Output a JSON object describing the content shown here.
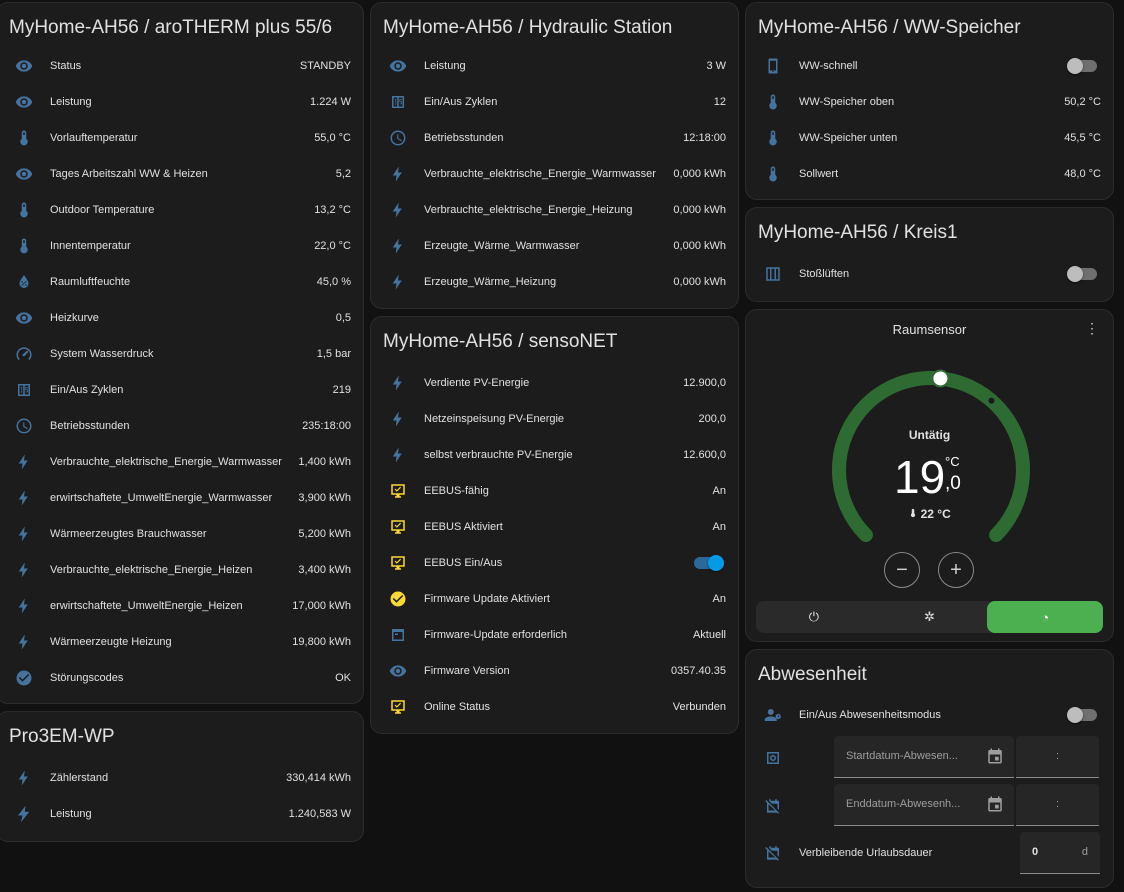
{
  "colors": {
    "icon": "#44739e",
    "icon_yellow": "#fdd835",
    "arc": "#2e6b33",
    "active_mode": "#4caf50",
    "toggle_on": "#039be5"
  },
  "arotherm": {
    "title": "MyHome-AH56 / aroTHERM plus 55/6",
    "rows": [
      {
        "icon": "eye-icon",
        "label": "Status",
        "value": "STANDBY"
      },
      {
        "icon": "eye-icon",
        "label": "Leistung",
        "value": "1.224 W"
      },
      {
        "icon": "thermometer-icon",
        "label": "Vorlauftemperatur",
        "value": "55,0 °C"
      },
      {
        "icon": "eye-icon",
        "label": "Tages Arbeitszahl WW & Heizen",
        "value": "5,2"
      },
      {
        "icon": "thermometer-icon",
        "label": "Outdoor Temperature",
        "value": "13,2 °C"
      },
      {
        "icon": "thermometer-icon",
        "label": "Innentemperatur",
        "value": "22,0 °C"
      },
      {
        "icon": "humidity-icon",
        "label": "Raumluftfeuchte",
        "value": "45,0 %"
      },
      {
        "icon": "eye-icon",
        "label": "Heizkurve",
        "value": "0,5"
      },
      {
        "icon": "gauge-icon",
        "label": "System Wasserdruck",
        "value": "1,5 bar"
      },
      {
        "icon": "counter-icon",
        "label": "Ein/Aus Zyklen",
        "value": "219"
      },
      {
        "icon": "clock-icon",
        "label": "Betriebsstunden",
        "value": "235:18:00"
      },
      {
        "icon": "flash-icon",
        "label": "Verbrauchte_elektrische_Energie_Warmwasser",
        "value": "1,400 kWh"
      },
      {
        "icon": "flash-icon",
        "label": "erwirtschaftete_UmweltEnergie_Warmwasser",
        "value": "3,900 kWh"
      },
      {
        "icon": "flash-icon",
        "label": "Wärmeerzeugtes Brauchwasser",
        "value": "5,200 kWh"
      },
      {
        "icon": "flash-icon",
        "label": "Verbrauchte_elektrische_Energie_Heizen",
        "value": "3,400 kWh"
      },
      {
        "icon": "flash-icon",
        "label": "erwirtschaftete_UmweltEnergie_Heizen",
        "value": "17,000 kWh"
      },
      {
        "icon": "flash-icon",
        "label": "Wärmeerzeugte Heizung",
        "value": "19,800 kWh"
      },
      {
        "icon": "check-circle-icon",
        "label": "Störungscodes",
        "value": "OK"
      }
    ]
  },
  "pro3em": {
    "title": "Pro3EM-WP",
    "rows": [
      {
        "icon": "flash-icon",
        "label": "Zählerstand",
        "value": "330,414 kWh"
      },
      {
        "icon": "flash-bold-icon",
        "label": "Leistung",
        "value": "1.240,583 W"
      }
    ]
  },
  "hydraulic": {
    "title": "MyHome-AH56 / Hydraulic Station",
    "rows": [
      {
        "icon": "eye-icon",
        "label": "Leistung",
        "value": "3 W"
      },
      {
        "icon": "counter-icon",
        "label": "Ein/Aus Zyklen",
        "value": "12"
      },
      {
        "icon": "clock-icon",
        "label": "Betriebsstunden",
        "value": "12:18:00"
      },
      {
        "icon": "flash-icon",
        "label": "Verbrauchte_elektrische_Energie_Warmwasser",
        "value": "0,000 kWh"
      },
      {
        "icon": "flash-icon",
        "label": "Verbrauchte_elektrische_Energie_Heizung",
        "value": "0,000 kWh"
      },
      {
        "icon": "flash-icon",
        "label": "Erzeugte_Wärme_Warmwasser",
        "value": "0,000 kWh"
      },
      {
        "icon": "flash-icon",
        "label": "Erzeugte_Wärme_Heizung",
        "value": "0,000 kWh"
      }
    ]
  },
  "sensonet": {
    "title": "MyHome-AH56 / sensoNET",
    "rows": [
      {
        "icon": "flash-icon",
        "label": "Verdiente PV-Energie",
        "value": "12.900,0",
        "kind": "value"
      },
      {
        "icon": "flash-icon",
        "label": "Netzeinspeisung PV-Energie",
        "value": "200,0",
        "kind": "value"
      },
      {
        "icon": "flash-icon",
        "label": "selbst verbrauchte PV-Energie",
        "value": "12.600,0",
        "kind": "value"
      },
      {
        "icon": "monitor-check-icon",
        "label": "EEBUS-fähig",
        "value": "An",
        "kind": "value",
        "yellow": true
      },
      {
        "icon": "monitor-check-icon",
        "label": "EEBUS Aktiviert",
        "value": "An",
        "kind": "value",
        "yellow": true
      },
      {
        "icon": "monitor-check-icon",
        "label": "EEBUS Ein/Aus",
        "value": "",
        "kind": "toggle-on",
        "yellow": true
      },
      {
        "icon": "check-circle-icon",
        "label": "Firmware Update Aktiviert",
        "value": "An",
        "kind": "value",
        "yellow": true
      },
      {
        "icon": "package-icon",
        "label": "Firmware-Update erforderlich",
        "value": "Aktuell",
        "kind": "value"
      },
      {
        "icon": "eye-icon",
        "label": "Firmware Version",
        "value": "0357.40.35",
        "kind": "value"
      },
      {
        "icon": "monitor-check-icon",
        "label": "Online Status",
        "value": "Verbunden",
        "kind": "value",
        "yellow": true
      }
    ]
  },
  "ww": {
    "title": "MyHome-AH56 / WW-Speicher",
    "rows": [
      {
        "icon": "phone-icon",
        "label": "WW-schnell",
        "value": "",
        "kind": "toggle-off"
      },
      {
        "icon": "thermometer-icon",
        "label": "WW-Speicher oben",
        "value": "50,2 °C",
        "kind": "value"
      },
      {
        "icon": "thermometer-icon",
        "label": "WW-Speicher unten",
        "value": "45,5 °C",
        "kind": "value"
      },
      {
        "icon": "thermometer-icon",
        "label": "Sollwert",
        "value": "48,0 °C",
        "kind": "value"
      }
    ]
  },
  "kreis": {
    "title": "MyHome-AH56 / Kreis1",
    "rows": [
      {
        "icon": "window-icon",
        "label": "Stoßlüften",
        "value": "",
        "kind": "toggle-off"
      }
    ]
  },
  "thermostat": {
    "title": "Raumsensor",
    "menu": "⋮",
    "state": "Untätig",
    "target_int": "19",
    "target_dec": ",0",
    "unit": "°C",
    "current": "22 °C",
    "target_value": 19.0,
    "minus": "−",
    "plus": "+",
    "modes": [
      {
        "icon": "power-icon",
        "glyph": "⏻",
        "active": false
      },
      {
        "icon": "snowflake-sun-icon",
        "glyph": "✲",
        "active": false
      },
      {
        "icon": "auto-icon",
        "glyph": "◔",
        "active": true
      }
    ]
  },
  "abwesenheit": {
    "title": "Abwesenheit",
    "toggle_label": "Ein/Aus Abwesenheitsmodus",
    "start_placeholder": "Startdatum-Abwesen...",
    "end_placeholder": "Enddatum-Abwesenh...",
    "time_colon": ":",
    "remaining_label": "Verbleibende Urlaubsdauer",
    "remaining_value": "0",
    "remaining_unit": "d"
  }
}
